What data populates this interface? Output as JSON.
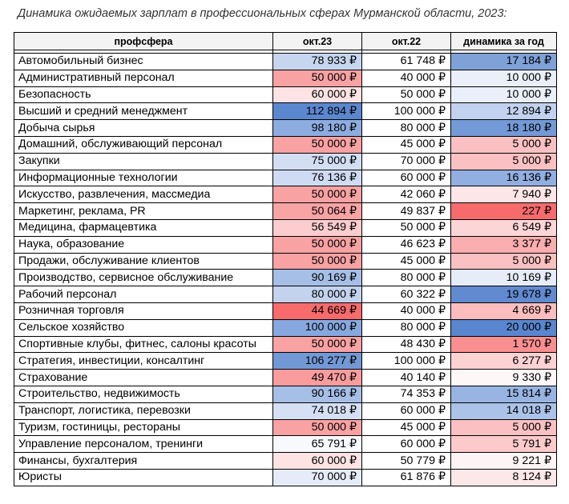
{
  "caption": "Динамика ожидаемых зарплат в профессиональных сферах Мурманской области, 2023:",
  "headers": [
    "профсфера",
    "окт.23",
    "окт.22",
    "динамика за год"
  ],
  "rows": [
    {
      "name": "Автомобильный бизнес",
      "oct23": "78 933 ₽",
      "oct22": "61 748 ₽",
      "dyn": "17 184 ₽",
      "c23": "#c6d6ef",
      "c22": "#ffffff",
      "cd": "#7ea1d8"
    },
    {
      "name": "Административный персонал",
      "oct23": "50 000 ₽",
      "oct22": "40 000 ₽",
      "dyn": "10 000 ₽",
      "c23": "#f8a2a3",
      "c22": "#ffffff",
      "cd": "#eaeffa"
    },
    {
      "name": "Безопасность",
      "oct23": "60 000 ₽",
      "oct22": "50 000 ₽",
      "dyn": "10 000 ₽",
      "c23": "#fde3e4",
      "c22": "#ffffff",
      "cd": "#eaeffa"
    },
    {
      "name": "Высший и средний менеджмент",
      "oct23": "112 894 ₽",
      "oct22": "100 000 ₽",
      "dyn": "12 894 ₽",
      "c23": "#5b87cf",
      "c22": "#ffffff",
      "cd": "#c1d1ee"
    },
    {
      "name": "Добыча сырья",
      "oct23": "98 180 ₽",
      "oct22": "80 000 ₽",
      "dyn": "18 180 ₽",
      "c23": "#8dace0",
      "c22": "#ffffff",
      "cd": "#7399d6"
    },
    {
      "name": "Домашний, обслуживающий персонал",
      "oct23": "50 000 ₽",
      "oct22": "45 000 ₽",
      "dyn": "5 000 ₽",
      "c23": "#f8a2a3",
      "c22": "#ffffff",
      "cd": "#fbc1c2"
    },
    {
      "name": "Закупки",
      "oct23": "75 000 ₽",
      "oct22": "70 000 ₽",
      "dyn": "5 000 ₽",
      "c23": "#d3def3",
      "c22": "#ffffff",
      "cd": "#fbc1c2"
    },
    {
      "name": "Информационные технологии",
      "oct23": "76 136 ₽",
      "oct22": "60 000 ₽",
      "dyn": "16 136 ₽",
      "c23": "#cfdbf2",
      "c22": "#ffffff",
      "cd": "#91afe1"
    },
    {
      "name": "Искусство, развлечения, массмедиа",
      "oct23": "50 000 ₽",
      "oct22": "42 060 ₽",
      "dyn": "7 940 ₽",
      "c23": "#f8a2a3",
      "c22": "#ffffff",
      "cd": "#fde6e7"
    },
    {
      "name": "Маркетинг, реклама, PR",
      "oct23": "50 064 ₽",
      "oct22": "49 837 ₽",
      "dyn": "227 ₽",
      "c23": "#f8a3a4",
      "c22": "#ffffff",
      "cd": "#f76b6d"
    },
    {
      "name": "Медицина, фармацевтика",
      "oct23": "56 549 ₽",
      "oct22": "50 000 ₽",
      "dyn": "6 549 ₽",
      "c23": "#fbcdce",
      "c22": "#ffffff",
      "cd": "#fcd5d6"
    },
    {
      "name": "Наука, образование",
      "oct23": "50 000 ₽",
      "oct22": "46 623 ₽",
      "dyn": "3 377 ₽",
      "c23": "#f8a2a3",
      "c22": "#ffffff",
      "cd": "#faaeaf"
    },
    {
      "name": "Продажи, обслуживание клиентов",
      "oct23": "50 000 ₽",
      "oct22": "45 000 ₽",
      "dyn": "5 000 ₽",
      "c23": "#f8a2a3",
      "c22": "#ffffff",
      "cd": "#fbc1c2"
    },
    {
      "name": "Производство, сервисное обслуживание",
      "oct23": "90 169 ₽",
      "oct22": "80 000 ₽",
      "dyn": "10 169 ₽",
      "c23": "#a6bfe7",
      "c22": "#ffffff",
      "cd": "#e6ecf8"
    },
    {
      "name": "Рабочий персонал",
      "oct23": "80 000 ₽",
      "oct22": "60 322 ₽",
      "dyn": "19 678 ₽",
      "c23": "#c3d3ee",
      "c22": "#ffffff",
      "cd": "#628ad0"
    },
    {
      "name": "Розничная торговля",
      "oct23": "44 669 ₽",
      "oct22": "40 000 ₽",
      "dyn": "4 669 ₽",
      "c23": "#f76b6d",
      "c22": "#ffffff",
      "cd": "#fbbdbe"
    },
    {
      "name": "Сельское хозяйство",
      "oct23": "100 000 ₽",
      "oct22": "80 000 ₽",
      "dyn": "20 000 ₽",
      "c23": "#87a8de",
      "c22": "#ffffff",
      "cd": "#5a86cf"
    },
    {
      "name": "Спортивные клубы, фитнес, салоны красоты",
      "oct23": "50 000 ₽",
      "oct22": "48 430 ₽",
      "dyn": "1 570 ₽",
      "c23": "#f8a2a3",
      "c22": "#ffffff",
      "cd": "#f98f91"
    },
    {
      "name": "Стратегия, инвестиции, консалтинг",
      "oct23": "106 277 ₽",
      "oct22": "100 000 ₽",
      "dyn": "6 277 ₽",
      "c23": "#7299d6",
      "c22": "#ffffff",
      "cd": "#fcd2d3"
    },
    {
      "name": "Страхование",
      "oct23": "49 470 ₽",
      "oct22": "40 140 ₽",
      "dyn": "9 330 ₽",
      "c23": "#f89c9e",
      "c22": "#ffffff",
      "cd": "#fdf7f7"
    },
    {
      "name": "Строительство, недвижимость",
      "oct23": "90 166 ₽",
      "oct22": "74 353 ₽",
      "dyn": "15 814 ₽",
      "c23": "#a6bfe7",
      "c22": "#ffffff",
      "cd": "#98b4e3"
    },
    {
      "name": "Транспорт, логистика, перевозки",
      "oct23": "74 018 ₽",
      "oct22": "60 000 ₽",
      "dyn": "14 018 ₽",
      "c23": "#d6e0f4",
      "c22": "#ffffff",
      "cd": "#abc3e8"
    },
    {
      "name": "Туризм, гостиницы, рестораны",
      "oct23": "50 000 ₽",
      "oct22": "45 000 ₽",
      "dyn": "5 000 ₽",
      "c23": "#f8a2a3",
      "c22": "#ffffff",
      "cd": "#fbc1c2"
    },
    {
      "name": "Управление персоналом, тренинги",
      "oct23": "65 791 ₽",
      "oct22": "60 000 ₽",
      "dyn": "5 791 ₽",
      "c23": "#f7f9fd",
      "c22": "#ffffff",
      "cd": "#fccacb"
    },
    {
      "name": "Финансы, бухгалтерия",
      "oct23": "60 000 ₽",
      "oct22": "50 779 ₽",
      "dyn": "9 221 ₽",
      "c23": "#fde3e4",
      "c22": "#ffffff",
      "cd": "#fdf5f5"
    },
    {
      "name": "Юристы",
      "oct23": "70 000 ₽",
      "oct22": "61 876 ₽",
      "dyn": "8 124 ₽",
      "c23": "#e5ebf8",
      "c22": "#ffffff",
      "cd": "#fde8e9"
    }
  ]
}
